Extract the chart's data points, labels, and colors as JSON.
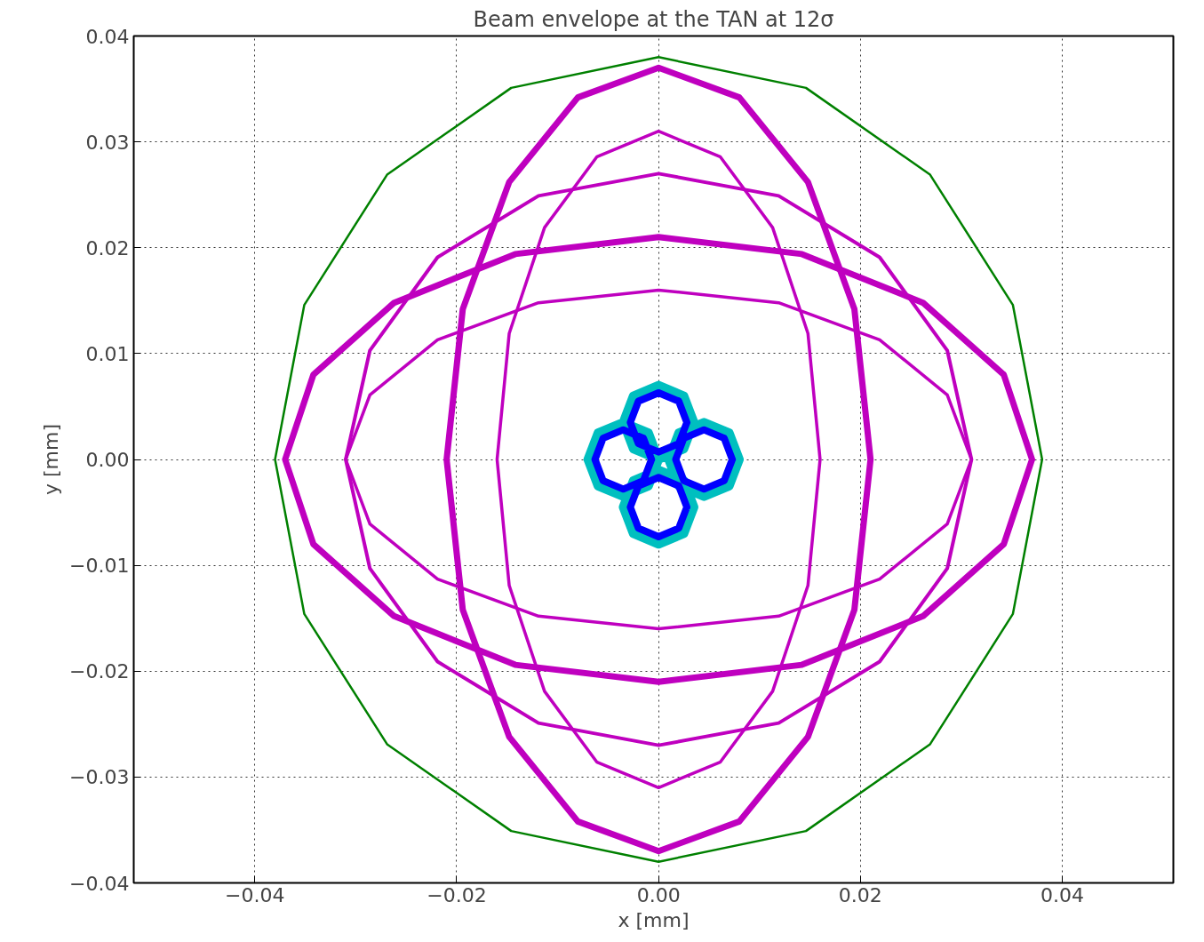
{
  "chart_data": {
    "type": "line",
    "title": "Beam envelope at the TAN at 12σ",
    "xlabel": "x [mm]",
    "ylabel": "y [mm]",
    "xlim": [
      -0.052,
      0.051
    ],
    "ylim": [
      -0.04,
      0.04
    ],
    "xticks": [
      {
        "value": -0.04,
        "label": "−0.04"
      },
      {
        "value": -0.02,
        "label": "−0.02"
      },
      {
        "value": 0,
        "label": "0.00"
      },
      {
        "value": 0.02,
        "label": "0.02"
      },
      {
        "value": 0.04,
        "label": "0.04"
      }
    ],
    "yticks": [
      {
        "value": -0.04,
        "label": "−0.04"
      },
      {
        "value": -0.03,
        "label": "−0.03"
      },
      {
        "value": -0.02,
        "label": "−0.02"
      },
      {
        "value": -0.01,
        "label": "−0.01"
      },
      {
        "value": 0,
        "label": "0.00"
      },
      {
        "value": 0.01,
        "label": "0.01"
      },
      {
        "value": 0.02,
        "label": "0.02"
      },
      {
        "value": 0.03,
        "label": "0.03"
      },
      {
        "value": 0.04,
        "label": "0.04"
      }
    ],
    "grid": true,
    "line_style": "solid",
    "marker": "none",
    "series": [
      {
        "color": "#008000",
        "x": [
          0.038,
          0.0351,
          0.0269,
          0.0146,
          0,
          -0.0146,
          -0.0269,
          -0.0351,
          -0.038,
          -0.0351,
          -0.0269,
          -0.0146,
          0,
          0.0146,
          0.0269,
          0.0351,
          0.038,
          0.0351
        ],
        "values": [
          0,
          0.0146,
          0.0269,
          0.0351,
          0.038,
          0.0351,
          0.0269,
          0.0146,
          0,
          -0.0146,
          -0.0269,
          -0.0351,
          -0.038,
          -0.0351,
          -0.0269,
          -0.0146,
          0,
          0.0146
        ]
      },
      {
        "color": "#bf00bf",
        "x": [
          0.037,
          0.0342,
          0.0262,
          0.0142,
          0,
          -0.0142,
          -0.0262,
          -0.0342,
          -0.037,
          -0.0342,
          -0.0262,
          -0.0142,
          0,
          0.0142,
          0.0262,
          0.0342,
          0.037,
          0.0342
        ],
        "values": [
          0,
          0.008,
          0.0148,
          0.0194,
          0.021,
          0.0194,
          0.0148,
          0.008,
          0,
          -0.008,
          -0.0148,
          -0.0194,
          -0.021,
          -0.0194,
          -0.0148,
          -0.008,
          0,
          0.008
        ]
      },
      {
        "color": "#bf00bf",
        "x": [
          0.021,
          0.0194,
          0.0148,
          0.008,
          0,
          -0.008,
          -0.0148,
          -0.0194,
          -0.021,
          -0.0194,
          -0.0148,
          -0.008,
          0,
          0.008,
          0.0148,
          0.0194,
          0.021,
          0.0194
        ],
        "values": [
          0,
          0.0142,
          0.0262,
          0.0342,
          0.037,
          0.0342,
          0.0262,
          0.0142,
          0,
          -0.0142,
          -0.0262,
          -0.0342,
          -0.037,
          -0.0342,
          -0.0262,
          -0.0142,
          0,
          0.0142
        ]
      },
      {
        "color": "#bf00bf",
        "x": [
          0.031,
          0.0286,
          0.0219,
          0.0119,
          0,
          -0.0119,
          -0.0219,
          -0.0286,
          -0.031,
          -0.0286,
          -0.0219,
          -0.0119,
          0,
          0.0119,
          0.0219,
          0.0286,
          0.031,
          0.0286
        ],
        "values": [
          0,
          0.0103,
          0.0191,
          0.0249,
          0.027,
          0.0249,
          0.0191,
          0.0103,
          0,
          -0.0103,
          -0.0191,
          -0.0249,
          -0.027,
          -0.0249,
          -0.0191,
          -0.0103,
          0,
          0.0103
        ]
      },
      {
        "color": "#bf00bf",
        "x": [
          0.031,
          0.0286,
          0.0219,
          0.0119,
          0,
          -0.0119,
          -0.0219,
          -0.0286,
          -0.031,
          -0.0286,
          -0.0219,
          -0.0119,
          0,
          0.0119,
          0.0219,
          0.0286,
          0.031,
          0.0286
        ],
        "values": [
          0,
          0.0061,
          0.0113,
          0.0148,
          0.016,
          0.0148,
          0.0113,
          0.0061,
          0,
          -0.0061,
          -0.0113,
          -0.0148,
          -0.016,
          -0.0148,
          -0.0113,
          -0.0061,
          0,
          0.0061
        ]
      },
      {
        "color": "#bf00bf",
        "x": [
          0.016,
          0.0148,
          0.0113,
          0.0061,
          0,
          -0.0061,
          -0.0113,
          -0.0148,
          -0.016,
          -0.0148,
          -0.0113,
          -0.0061,
          0,
          0.0061,
          0.0113,
          0.0148,
          0.016,
          0.0148
        ],
        "values": [
          0,
          0.0119,
          0.0219,
          0.0286,
          0.031,
          0.0286,
          0.0219,
          0.0119,
          0,
          -0.0119,
          -0.0219,
          -0.0286,
          -0.031,
          -0.0286,
          -0.0219,
          -0.0119,
          0,
          0.0119
        ]
      },
      {
        "color": "#00bfbf",
        "x": [
          0.0035,
          0.0025,
          0,
          -0.0025,
          -0.0035,
          -0.0025,
          0,
          0.0025,
          0.0035,
          0.0025,
          null,
          0.0035,
          0.0025,
          0,
          -0.0025,
          -0.0035,
          -0.0025,
          0,
          0.0025,
          0.0035,
          0.0025,
          null,
          0.008,
          0.007,
          0.0045,
          0.002,
          0.001,
          0.002,
          0.0045,
          0.007,
          0.008,
          0.007,
          null,
          0,
          -0.001,
          -0.0035,
          -0.006,
          -0.007,
          -0.006,
          -0.0035,
          -0.001,
          0,
          -0.001
        ],
        "values": [
          0.0035,
          0.006,
          0.007,
          0.006,
          0.0035,
          0.001,
          0,
          0.001,
          0.0035,
          0.006,
          null,
          -0.0045,
          -0.002,
          -0.001,
          -0.002,
          -0.0045,
          -0.007,
          -0.008,
          -0.007,
          -0.0045,
          -0.002,
          null,
          0,
          0.0025,
          0.0035,
          0.0025,
          0,
          -0.0025,
          -0.0035,
          -0.0025,
          0,
          0.0025,
          null,
          0,
          0.0025,
          0.0035,
          0.0025,
          0,
          -0.0025,
          -0.0035,
          -0.0025,
          0,
          0.0025
        ]
      },
      {
        "color": "#0000ff",
        "x": [
          0.0028,
          0.002,
          0,
          -0.002,
          -0.0028,
          -0.002,
          0,
          0.002,
          0.0028,
          0.002,
          null,
          0.0028,
          0.002,
          0,
          -0.002,
          -0.0028,
          -0.002,
          0,
          0.002,
          0.0028,
          0.002,
          null,
          0.0073,
          0.0065,
          0.0045,
          0.0025,
          0.0017,
          0.0025,
          0.0045,
          0.0065,
          0.0073,
          0.0065,
          null,
          -0.0007,
          -0.0015,
          -0.0035,
          -0.0055,
          -0.0063,
          -0.0055,
          -0.0035,
          -0.0015,
          -0.0007,
          -0.0015
        ],
        "values": [
          0.0035,
          0.0055,
          0.0063,
          0.0055,
          0.0035,
          0.0015,
          0.0007,
          0.0015,
          0.0035,
          0.0055,
          null,
          -0.0045,
          -0.0025,
          -0.0017,
          -0.0025,
          -0.0045,
          -0.0065,
          -0.0073,
          -0.0065,
          -0.0045,
          -0.0025,
          null,
          0,
          0.002,
          0.0028,
          0.002,
          0,
          -0.002,
          -0.0028,
          -0.002,
          0,
          0.002,
          null,
          0,
          0.002,
          0.0028,
          0.002,
          0,
          -0.002,
          -0.0028,
          -0.002,
          0,
          0.002
        ]
      }
    ]
  }
}
